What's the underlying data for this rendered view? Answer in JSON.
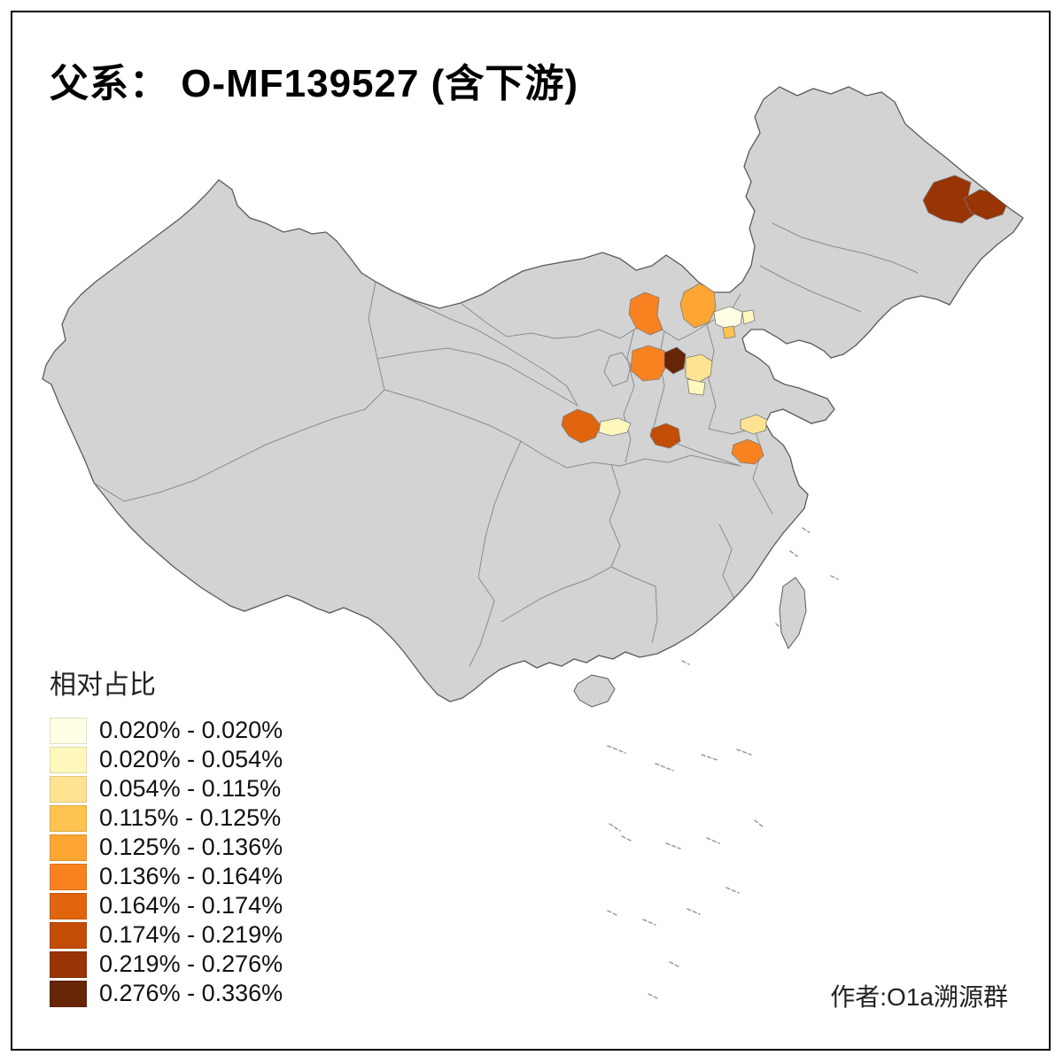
{
  "title": "父系： O-MF139527 (含下游)",
  "legend": {
    "title": "相对占比",
    "items": [
      {
        "range": "0.020% - 0.020%",
        "color": "#FFFFE5"
      },
      {
        "range": "0.020% - 0.054%",
        "color": "#FFF7BC"
      },
      {
        "range": "0.054% - 0.115%",
        "color": "#FEE391"
      },
      {
        "range": "0.115% - 0.125%",
        "color": "#FEC44F"
      },
      {
        "range": "0.125% - 0.136%",
        "color": "#FEA633"
      },
      {
        "range": "0.136% - 0.164%",
        "color": "#F8821F"
      },
      {
        "range": "0.164% - 0.174%",
        "color": "#E1640E"
      },
      {
        "range": "0.174% - 0.219%",
        "color": "#C34D04"
      },
      {
        "range": "0.219% - 0.276%",
        "color": "#993404"
      },
      {
        "range": "0.276% - 0.336%",
        "color": "#662506"
      }
    ]
  },
  "attribution": "作者:O1a溯源群",
  "map": {
    "base_fill": "#D3D3D3",
    "outer_border_color": "#5A5A5A",
    "inner_border_color": "#8C8C8C",
    "background": "#FFFFFF",
    "regions": [
      {
        "id": "northeast-dark-a",
        "class": 9
      },
      {
        "id": "northeast-dark-b",
        "class": 9
      },
      {
        "id": "north-shaanxi-orange",
        "class": 6
      },
      {
        "id": "north-shanxi-orange",
        "class": 5
      },
      {
        "id": "beijing-area-pale",
        "class": 1
      },
      {
        "id": "beijing-area-small-orange",
        "class": 4
      },
      {
        "id": "hebei-small-pale",
        "class": 2
      },
      {
        "id": "mid-shaanxi-orange",
        "class": 6
      },
      {
        "id": "shanxi-center-darkbrown",
        "class": 10
      },
      {
        "id": "shanxi-east-paleyellow",
        "class": 3
      },
      {
        "id": "shanxi-south-pale",
        "class": 2
      },
      {
        "id": "gansu-deep-orange",
        "class": 7
      },
      {
        "id": "gansu-east-pale",
        "class": 2
      },
      {
        "id": "guanzhong-dark-orange",
        "class": 8
      },
      {
        "id": "north-jiangsu-paleyellow",
        "class": 3
      },
      {
        "id": "north-anhui-orange",
        "class": 6
      }
    ]
  }
}
